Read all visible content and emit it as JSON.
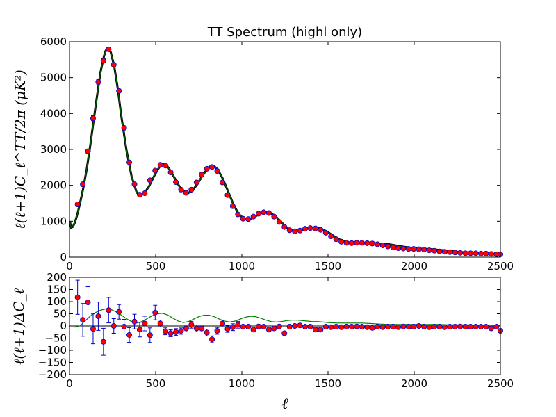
{
  "chart_data": [
    {
      "type": "scatter",
      "title": "TT Spectrum (highl only)",
      "xlabel": "",
      "ylabel": "ℓ(ℓ+1)C_ℓ^TT/2π (μK²)",
      "xlim": [
        0,
        2500
      ],
      "ylim": [
        0,
        6000
      ],
      "xticks": [
        "0",
        "500",
        "1000",
        "1500",
        "2000",
        "2500"
      ],
      "yticks": [
        "0",
        "1000",
        "2000",
        "3000",
        "4000",
        "5000",
        "6000"
      ],
      "grid": false,
      "colors": {
        "points": "#ff0000",
        "point_edge": "#0000cc",
        "error_bars": "#0000cc",
        "model": "#006400"
      },
      "series": [
        {
          "kind": "points",
          "x": [
            47,
            77,
            107,
            137,
            167,
            197,
            227,
            257,
            287,
            317,
            347,
            377,
            407,
            437,
            467,
            497,
            527,
            557,
            587,
            617,
            647,
            677,
            707,
            737,
            767,
            797,
            827,
            857,
            887,
            917,
            947,
            977,
            1007,
            1037,
            1067,
            1097,
            1127,
            1157,
            1187,
            1217,
            1247,
            1277,
            1307,
            1337,
            1367,
            1397,
            1427,
            1457,
            1487,
            1517,
            1547,
            1577,
            1607,
            1637,
            1667,
            1697,
            1727,
            1757,
            1787,
            1817,
            1847,
            1877,
            1907,
            1937,
            1967,
            1997,
            2027,
            2057,
            2087,
            2117,
            2147,
            2177,
            2207,
            2237,
            2267,
            2297,
            2327,
            2357,
            2387,
            2417,
            2447,
            2477,
            2500
          ],
          "y": [
            1470,
            2030,
            2950,
            3870,
            4880,
            5470,
            5790,
            5360,
            4630,
            3600,
            2640,
            2030,
            1740,
            1780,
            2140,
            2410,
            2570,
            2550,
            2360,
            2090,
            1880,
            1790,
            1880,
            2080,
            2300,
            2460,
            2510,
            2400,
            2080,
            1730,
            1420,
            1190,
            1070,
            1060,
            1130,
            1210,
            1250,
            1230,
            1130,
            980,
            840,
            750,
            720,
            740,
            790,
            810,
            800,
            760,
            680,
            580,
            500,
            430,
            400,
            390,
            400,
            400,
            390,
            380,
            360,
            330,
            300,
            270,
            250,
            240,
            230,
            230,
            220,
            210,
            190,
            180,
            160,
            150,
            140,
            130,
            120,
            110,
            110,
            110,
            100,
            100,
            90,
            80,
            80
          ],
          "yerr": [
            60,
            60,
            60,
            70,
            60,
            60,
            60,
            50,
            50,
            40,
            30,
            30,
            20,
            20,
            20,
            20,
            20,
            20,
            20,
            20,
            20,
            20,
            20,
            20,
            20,
            20,
            20,
            20,
            20,
            20,
            20,
            20,
            20,
            20,
            20,
            20,
            20,
            20,
            20,
            20,
            20,
            20,
            20,
            20,
            20,
            20,
            20,
            20,
            20,
            20,
            20,
            20,
            20,
            20,
            20,
            20,
            20,
            20,
            20,
            20,
            20,
            20,
            20,
            20,
            20,
            20,
            20,
            20,
            20,
            20,
            20,
            20,
            20,
            20,
            20,
            20,
            20,
            20,
            20,
            20,
            20,
            20,
            20
          ]
        },
        {
          "kind": "model-curve",
          "x": [
            2,
            10,
            20,
            30,
            40,
            50,
            60,
            80,
            100,
            120,
            140,
            160,
            180,
            200,
            210,
            220,
            230,
            240,
            260,
            280,
            300,
            330,
            360,
            390,
            410,
            430,
            460,
            490,
            520,
            540,
            560,
            580,
            610,
            640,
            670,
            690,
            710,
            740,
            770,
            800,
            820,
            840,
            860,
            890,
            920,
            950,
            980,
            1010,
            1040,
            1070,
            1100,
            1130,
            1160,
            1190,
            1220,
            1250,
            1280,
            1310,
            1340,
            1370,
            1400,
            1430,
            1460,
            1490,
            1520,
            1550,
            1580,
            1620,
            1660,
            1700,
            1750,
            1800,
            1850,
            1900,
            1950,
            2000,
            2050,
            2100,
            2150,
            2200,
            2250,
            2300,
            2350,
            2400,
            2450,
            2500
          ],
          "y": [
            1000,
            820,
            850,
            950,
            1100,
            1280,
            1480,
            1920,
            2450,
            3100,
            3800,
            4500,
            5150,
            5600,
            5750,
            5820,
            5800,
            5700,
            5300,
            4700,
            3950,
            3000,
            2250,
            1800,
            1720,
            1760,
            1960,
            2250,
            2500,
            2600,
            2580,
            2450,
            2200,
            1950,
            1820,
            1790,
            1840,
            2020,
            2260,
            2460,
            2540,
            2530,
            2440,
            2180,
            1830,
            1480,
            1210,
            1080,
            1050,
            1110,
            1200,
            1250,
            1240,
            1160,
            1020,
            870,
            760,
            720,
            730,
            780,
            820,
            820,
            790,
            720,
            630,
            530,
            460,
            410,
            390,
            390,
            390,
            380,
            360,
            320,
            280,
            250,
            230,
            220,
            200,
            180,
            150,
            130,
            110,
            100,
            90,
            80
          ]
        }
      ]
    },
    {
      "type": "scatter",
      "title": "",
      "xlabel": "ℓ",
      "ylabel": "ℓ(ℓ+1)ΔC_ℓ",
      "xlim": [
        0,
        2500
      ],
      "ylim": [
        -200,
        200
      ],
      "xticks": [
        "0",
        "500",
        "1000",
        "1500",
        "2000",
        "2500"
      ],
      "yticks": [
        "−200",
        "−150",
        "−100",
        "−50",
        "0",
        "50",
        "100",
        "150",
        "200"
      ],
      "grid": false,
      "colors": {
        "points": "#ff0000",
        "point_edge": "#0000cc",
        "error_bars": "#0000cc",
        "model": "#008000",
        "zero_line": "#000000"
      },
      "series": [
        {
          "kind": "points",
          "x": [
            47,
            77,
            107,
            137,
            167,
            197,
            227,
            257,
            287,
            317,
            347,
            377,
            407,
            437,
            467,
            497,
            527,
            557,
            587,
            617,
            647,
            677,
            707,
            737,
            767,
            797,
            827,
            857,
            887,
            917,
            947,
            977,
            1007,
            1037,
            1067,
            1097,
            1127,
            1157,
            1187,
            1217,
            1247,
            1277,
            1307,
            1337,
            1367,
            1397,
            1427,
            1457,
            1487,
            1517,
            1547,
            1577,
            1607,
            1637,
            1667,
            1697,
            1727,
            1757,
            1787,
            1817,
            1847,
            1877,
            1907,
            1937,
            1967,
            1997,
            2027,
            2057,
            2087,
            2117,
            2147,
            2177,
            2207,
            2237,
            2267,
            2297,
            2327,
            2357,
            2387,
            2417,
            2447,
            2477,
            2500
          ],
          "y": [
            118,
            25,
            97,
            -12,
            40,
            -65,
            65,
            0,
            58,
            -3,
            -37,
            18,
            -15,
            10,
            -38,
            55,
            10,
            -22,
            -30,
            -25,
            -20,
            -10,
            5,
            -10,
            -10,
            -27,
            -55,
            -20,
            10,
            -12,
            -5,
            5,
            -3,
            -3,
            -15,
            -2,
            -3,
            -15,
            -10,
            -2,
            -30,
            -3,
            0,
            2,
            -3,
            -3,
            -15,
            -15,
            -3,
            -5,
            -3,
            -5,
            -3,
            -3,
            -2,
            -3,
            -5,
            -8,
            -3,
            -5,
            -3,
            -3,
            -5,
            -2,
            -3,
            -3,
            0,
            -3,
            -5,
            -3,
            -3,
            -5,
            -3,
            -3,
            -2,
            -3,
            -3,
            -3,
            -3,
            -3,
            -10,
            -3,
            -20
          ]
        },
        {
          "kind": "model-curve",
          "x": [
            30,
            60,
            90,
            120,
            150,
            180,
            210,
            240,
            270,
            300,
            330,
            360,
            390,
            420,
            450,
            480,
            510,
            540,
            570,
            600,
            630,
            660,
            690,
            720,
            750,
            780,
            810,
            840,
            870,
            900,
            930,
            960,
            990,
            1020,
            1050,
            1080,
            1110,
            1140,
            1170,
            1200,
            1230,
            1260,
            1290,
            1320,
            1350,
            1380,
            1410,
            1440,
            1470,
            1500,
            1550,
            1600,
            1650,
            1700,
            1750,
            1800,
            1850,
            1900,
            1950,
            2000,
            2050,
            2100,
            2150,
            2200,
            2250,
            2300,
            2350,
            2400,
            2450,
            2500
          ],
          "y": [
            -5,
            0,
            20,
            40,
            55,
            65,
            70,
            68,
            58,
            45,
            30,
            18,
            12,
            18,
            30,
            42,
            50,
            52,
            45,
            32,
            20,
            14,
            18,
            28,
            38,
            44,
            44,
            38,
            28,
            20,
            16,
            20,
            28,
            36,
            40,
            38,
            32,
            24,
            18,
            16,
            18,
            22,
            24,
            24,
            22,
            20,
            18,
            18,
            16,
            14,
            12,
            12,
            12,
            12,
            10,
            8,
            6,
            6,
            6,
            6,
            6,
            6,
            6,
            5,
            5,
            5,
            4,
            4,
            4,
            3
          ]
        }
      ]
    }
  ]
}
